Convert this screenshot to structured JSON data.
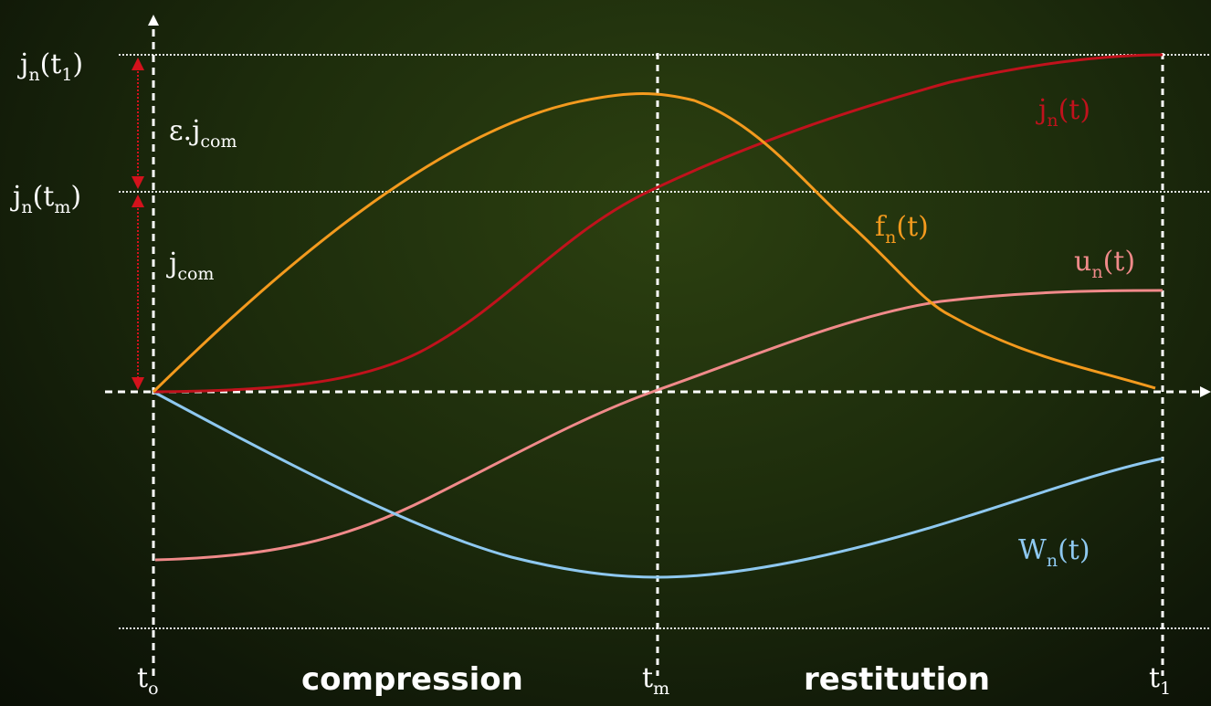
{
  "colors": {
    "jn": "#c0121c",
    "fn": "#f39a1e",
    "un": "#f08a8a",
    "Wn": "#8ec8f0",
    "axis": "#ffffff",
    "arrow": "#d3121c"
  },
  "axis_labels": {
    "t0": {
      "main": "t",
      "sub": "o"
    },
    "tm": {
      "main": "t",
      "sub": "m"
    },
    "t1": {
      "main": "t",
      "sub": "1"
    },
    "compression": "compression",
    "restitution": "restitution"
  },
  "level_labels": {
    "jn_t1": {
      "main": "j",
      "sub": "n",
      "open": "(t",
      "sub2": "1",
      "close": ")"
    },
    "jn_tm": {
      "main": "j",
      "sub": "n",
      "open": "(t",
      "sub2": "m",
      "close": ")"
    },
    "eps_jcom": {
      "main": "ε.j",
      "sub": "com"
    },
    "jcom": {
      "main": "j",
      "sub": "com"
    }
  },
  "curve_labels": {
    "jn": {
      "main": "j",
      "sub": "n",
      "rest": "(t)"
    },
    "fn": {
      "main": "f",
      "sub": "n",
      "rest": "(t)"
    },
    "un": {
      "main": "u",
      "sub": "n",
      "rest": "(t)"
    },
    "Wn": {
      "main": "W",
      "sub": "n",
      "rest": "(t)"
    }
  }
}
